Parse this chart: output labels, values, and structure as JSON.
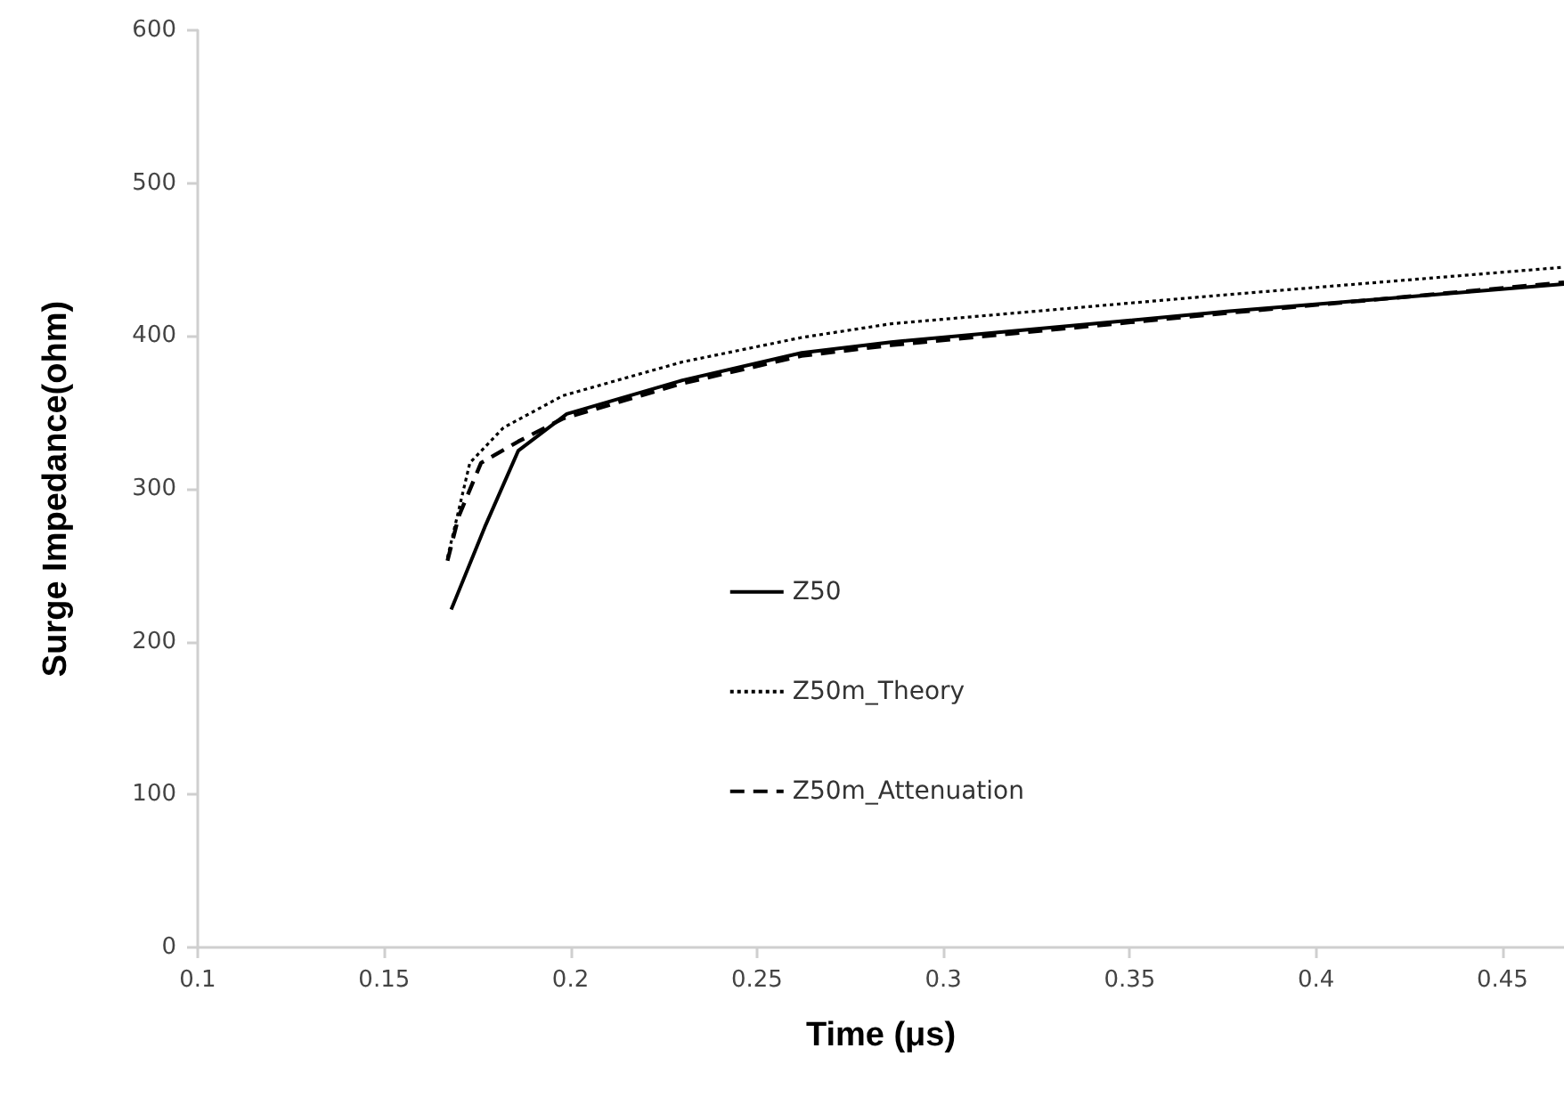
{
  "chart_data": {
    "type": "line",
    "xlabel": "Time (μs)",
    "ylabel": "Surge Impedance(ohm)",
    "xlim": [
      0.1,
      0.4665
    ],
    "xticks": [
      0.1,
      0.15,
      0.2,
      0.25,
      0.3,
      0.35,
      0.4,
      0.45
    ],
    "ylim": [
      0,
      600
    ],
    "yticks": [
      0,
      100,
      200,
      300,
      400,
      500,
      600
    ],
    "grid": false,
    "legend": "center",
    "series": [
      {
        "name": "Z50",
        "color": "#000000",
        "line_style": "solid",
        "x": [
          0.168,
          0.177,
          0.186,
          0.199,
          0.23,
          0.262,
          0.286,
          0.376,
          0.4665
        ],
        "values": [
          221,
          275,
          325,
          349,
          371,
          389,
          396,
          416,
          434
        ]
      },
      {
        "name": "Z50m_Theory",
        "color": "#000000",
        "line_style": "dotted",
        "x": [
          0.167,
          0.173,
          0.182,
          0.198,
          0.23,
          0.262,
          0.286,
          0.376,
          0.4665
        ],
        "values": [
          255,
          317,
          340,
          361,
          383,
          399,
          408,
          427,
          445
        ]
      },
      {
        "name": "Z50m_Attenuation",
        "color": "#000000",
        "line_style": "dashed",
        "x": [
          0.167,
          0.17,
          0.176,
          0.186,
          0.198,
          0.23,
          0.262,
          0.286,
          0.376,
          0.4665
        ],
        "values": [
          253,
          282,
          317,
          331,
          346,
          369,
          387,
          394,
          415,
          435
        ]
      }
    ]
  }
}
